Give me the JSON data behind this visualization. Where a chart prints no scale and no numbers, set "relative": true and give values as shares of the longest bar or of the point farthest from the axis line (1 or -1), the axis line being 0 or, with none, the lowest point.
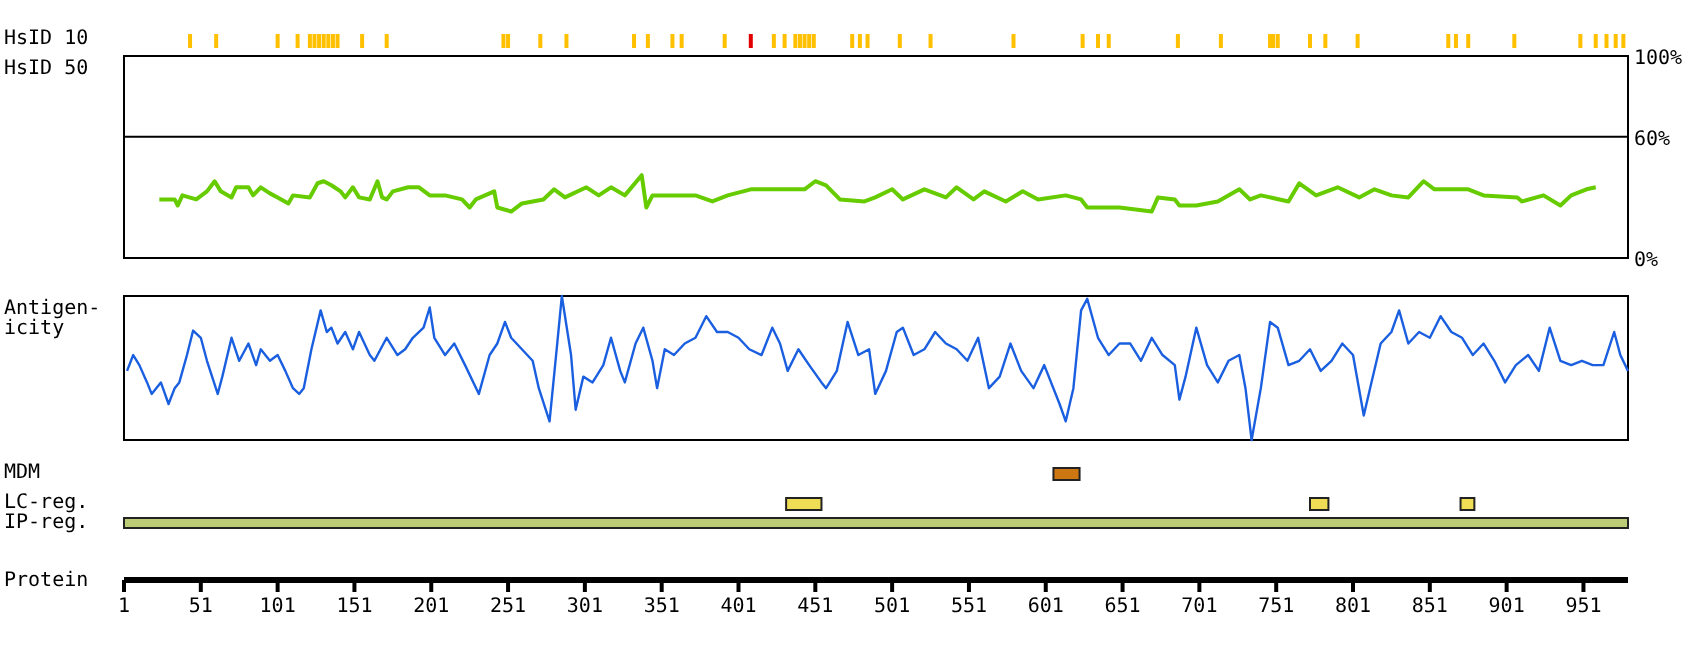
{
  "chart_data": [
    {
      "type": "bar",
      "ylabel": "HsID 10",
      "relative": true,
      "tick_labels": false,
      "xlim": [
        1,
        980
      ],
      "x": [
        44,
        61,
        101,
        114,
        122,
        125,
        128,
        131,
        134,
        137,
        140,
        156,
        172,
        248,
        251,
        272,
        289,
        333,
        342,
        358,
        364,
        392,
        409,
        424,
        431,
        438,
        441,
        444,
        447,
        450,
        475,
        480,
        485,
        506,
        526,
        580,
        625,
        635,
        642,
        687,
        715,
        747,
        749,
        752,
        773,
        783,
        804,
        863,
        868,
        876,
        906,
        949,
        959,
        966,
        972,
        977
      ],
      "values": [
        1,
        1,
        1,
        1,
        1,
        1,
        1,
        1,
        1,
        1,
        1,
        1,
        1,
        1,
        1,
        1,
        1,
        1,
        1,
        1,
        1,
        1,
        1,
        1,
        1,
        1,
        1,
        1,
        1,
        1,
        1,
        1,
        1,
        1,
        1,
        1,
        1,
        1,
        1,
        1,
        1,
        1,
        1,
        1,
        1,
        1,
        1,
        1,
        1,
        1,
        1,
        1,
        1,
        1,
        1,
        1
      ],
      "colors": [
        "#ffc000",
        "#ffc000",
        "#ffc000",
        "#ffc000",
        "#ffc000",
        "#ffc000",
        "#ffc000",
        "#ffc000",
        "#ffc000",
        "#ffc000",
        "#ffc000",
        "#ffc000",
        "#ffc000",
        "#ffc000",
        "#ffc000",
        "#ffc000",
        "#ffc000",
        "#ffc000",
        "#ffc000",
        "#ffc000",
        "#ffc000",
        "#ffc000",
        "#e00000",
        "#ffc000",
        "#ffc000",
        "#ffc000",
        "#ffc000",
        "#ffc000",
        "#ffc000",
        "#ffc000",
        "#ffc000",
        "#ffc000",
        "#ffc000",
        "#ffc000",
        "#ffc000",
        "#ffc000",
        "#ffc000",
        "#ffc000",
        "#ffc000",
        "#ffc000",
        "#ffc000",
        "#ffc000",
        "#ffc000",
        "#ffc000",
        "#ffc000",
        "#ffc000",
        "#ffc000",
        "#ffc000",
        "#ffc000",
        "#ffc000",
        "#ffc000",
        "#ffc000",
        "#ffc000",
        "#ffc000",
        "#ffc000",
        "#ffc000"
      ]
    },
    {
      "type": "line",
      "ylabel": "HsID 50",
      "tick_labels": "y",
      "xlim": [
        1,
        980
      ],
      "ylim": [
        0,
        100
      ],
      "yticks": [
        {
          "value": 0,
          "label": "0%"
        },
        {
          "value": 60,
          "label": "60%"
        },
        {
          "value": 100,
          "label": "100%"
        }
      ],
      "ref_lines": [
        {
          "axis": "y",
          "value": 60,
          "color": "#000000"
        }
      ],
      "series": [
        {
          "color": "#66cc00",
          "x": [
            24,
            34,
            36,
            39,
            48,
            55,
            60,
            64,
            71,
            74,
            82,
            85,
            90,
            96,
            101,
            108,
            111,
            122,
            127,
            131,
            136,
            142,
            145,
            150,
            154,
            161,
            166,
            169,
            172,
            176,
            186,
            193,
            200,
            210,
            221,
            226,
            230,
            242,
            244,
            253,
            260,
            274,
            281,
            288,
            302,
            310,
            318,
            327,
            338,
            341,
            345,
            373,
            384,
            394,
            409,
            444,
            451,
            458,
            467,
            483,
            490,
            501,
            508,
            522,
            536,
            543,
            554,
            561,
            575,
            586,
            596,
            614,
            624,
            628,
            649,
            670,
            674,
            685,
            688,
            699,
            713,
            727,
            734,
            741,
            759,
            766,
            777,
            791,
            805,
            815,
            826,
            837,
            847,
            854,
            876,
            886,
            908,
            911,
            925,
            936,
            943,
            953,
            959
          ],
          "values": [
            29,
            29,
            26,
            31,
            29,
            33,
            38,
            33,
            30,
            35,
            35,
            31,
            35,
            32,
            30,
            27,
            31,
            30,
            37,
            38,
            36,
            33,
            30,
            35,
            30,
            29,
            38,
            30,
            29,
            33,
            35,
            35,
            31,
            31,
            29,
            25,
            29,
            33,
            25,
            23,
            27,
            29,
            34,
            30,
            35,
            31,
            35,
            31,
            41,
            25,
            31,
            31,
            28,
            31,
            34,
            34,
            38,
            36,
            29,
            28,
            30,
            34,
            29,
            34,
            30,
            35,
            29,
            33,
            28,
            33,
            29,
            31,
            29,
            25,
            25,
            23,
            30,
            29,
            26,
            26,
            28,
            34,
            29,
            31,
            28,
            37,
            31,
            35,
            30,
            34,
            31,
            30,
            38,
            34,
            34,
            31,
            30,
            28,
            31,
            26,
            31,
            34,
            35
          ]
        }
      ]
    },
    {
      "type": "line",
      "ylabel": "Antigen-icity",
      "relative": true,
      "tick_labels": false,
      "xlim": [
        1,
        980
      ],
      "series": [
        {
          "color": "#1a5fe0",
          "x": [
            3,
            7,
            11,
            16,
            19,
            25,
            30,
            34,
            37,
            42,
            46,
            51,
            55,
            62,
            65,
            71,
            76,
            82,
            87,
            90,
            96,
            101,
            106,
            111,
            115,
            118,
            123,
            129,
            133,
            136,
            140,
            145,
            150,
            154,
            161,
            164,
            172,
            179,
            184,
            189,
            196,
            200,
            203,
            210,
            216,
            223,
            232,
            239,
            244,
            249,
            253,
            260,
            267,
            271,
            278,
            283,
            286,
            292,
            295,
            300,
            306,
            313,
            318,
            324,
            327,
            334,
            339,
            345,
            348,
            353,
            359,
            366,
            373,
            380,
            387,
            394,
            401,
            408,
            416,
            423,
            428,
            433,
            440,
            447,
            455,
            458,
            465,
            472,
            479,
            486,
            490,
            497,
            504,
            508,
            515,
            522,
            529,
            536,
            543,
            550,
            557,
            564,
            571,
            578,
            585,
            593,
            600,
            610,
            614,
            619,
            624,
            628,
            635,
            642,
            649,
            656,
            663,
            670,
            677,
            685,
            688,
            692,
            699,
            706,
            713,
            720,
            727,
            731,
            735,
            741,
            747,
            752,
            759,
            766,
            773,
            780,
            787,
            794,
            801,
            808,
            813,
            819,
            826,
            831,
            837,
            844,
            851,
            858,
            865,
            872,
            879,
            886,
            893,
            900,
            907,
            915,
            922,
            929,
            936,
            943,
            950,
            957,
            964,
            971,
            975,
            980
          ],
          "values": [
            0.48,
            0.59,
            0.52,
            0.4,
            0.32,
            0.4,
            0.25,
            0.36,
            0.4,
            0.59,
            0.76,
            0.71,
            0.55,
            0.32,
            0.44,
            0.71,
            0.55,
            0.67,
            0.52,
            0.63,
            0.55,
            0.59,
            0.48,
            0.36,
            0.32,
            0.36,
            0.63,
            0.9,
            0.75,
            0.78,
            0.67,
            0.75,
            0.63,
            0.75,
            0.59,
            0.55,
            0.71,
            0.59,
            0.63,
            0.71,
            0.78,
            0.92,
            0.71,
            0.59,
            0.67,
            0.52,
            0.32,
            0.59,
            0.67,
            0.82,
            0.71,
            0.63,
            0.55,
            0.36,
            0.13,
            0.67,
            1,
            0.59,
            0.21,
            0.44,
            0.4,
            0.52,
            0.71,
            0.48,
            0.4,
            0.67,
            0.78,
            0.55,
            0.36,
            0.63,
            0.59,
            0.67,
            0.71,
            0.86,
            0.75,
            0.75,
            0.71,
            0.63,
            0.59,
            0.78,
            0.67,
            0.48,
            0.63,
            0.52,
            0.4,
            0.36,
            0.48,
            0.82,
            0.59,
            0.63,
            0.32,
            0.48,
            0.75,
            0.78,
            0.59,
            0.63,
            0.75,
            0.67,
            0.63,
            0.55,
            0.71,
            0.36,
            0.44,
            0.67,
            0.48,
            0.36,
            0.52,
            0.25,
            0.13,
            0.36,
            0.9,
            0.98,
            0.71,
            0.59,
            0.67,
            0.67,
            0.55,
            0.71,
            0.59,
            0.52,
            0.28,
            0.44,
            0.78,
            0.52,
            0.4,
            0.55,
            0.59,
            0.36,
            0,
            0.36,
            0.82,
            0.78,
            0.52,
            0.55,
            0.63,
            0.48,
            0.55,
            0.67,
            0.59,
            0.17,
            0.4,
            0.67,
            0.75,
            0.9,
            0.67,
            0.75,
            0.71,
            0.86,
            0.75,
            0.71,
            0.59,
            0.67,
            0.55,
            0.4,
            0.52,
            0.59,
            0.48,
            0.78,
            0.55,
            0.52,
            0.55,
            0.52,
            0.52,
            0.75,
            0.59,
            0.48
          ]
        }
      ]
    },
    {
      "type": "bar",
      "orientation": "horizontal",
      "xlabel": "Protein",
      "xlim": [
        1,
        980
      ],
      "xticks": [
        1,
        51,
        101,
        151,
        201,
        251,
        301,
        351,
        401,
        451,
        501,
        551,
        601,
        651,
        701,
        751,
        801,
        851,
        901,
        951
      ],
      "categories": [
        "MDM",
        "LC-reg.",
        "IP-reg."
      ],
      "series": [
        {
          "values": [
            17,
            23,
            979
          ],
          "base": [
            606,
            432,
            1
          ],
          "colors": [
            "#cc7711",
            "#eedd55",
            "#bbcc77"
          ]
        },
        {
          "values": [
            null,
            12,
            null
          ],
          "base": [
            null,
            773,
            null
          ],
          "colors": [
            null,
            "#eedd55",
            null
          ]
        },
        {
          "values": [
            null,
            9,
            null
          ],
          "base": [
            null,
            871,
            null
          ],
          "colors": [
            null,
            "#eedd55",
            null
          ]
        }
      ]
    }
  ]
}
